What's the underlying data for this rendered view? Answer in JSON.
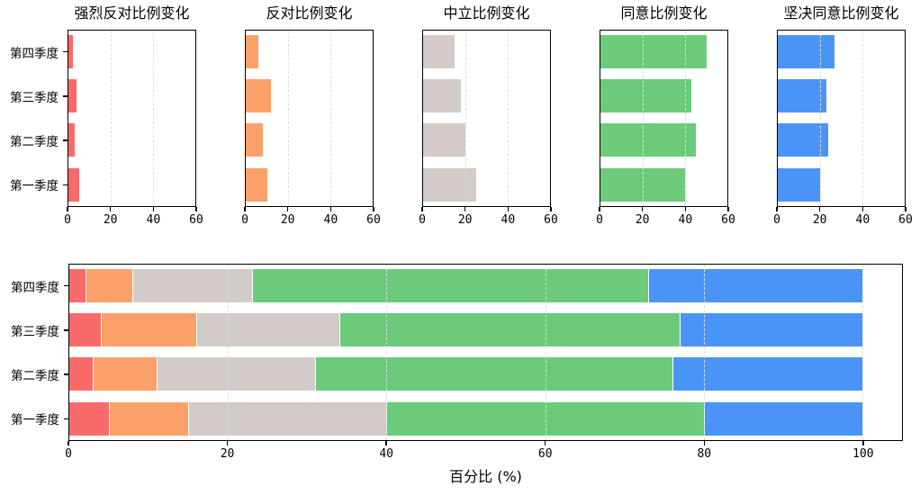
{
  "styles": {
    "background": "#FFFFFF",
    "axis_color": "#000000",
    "grid_color": "#DCDCDC",
    "text_color": "#000000"
  },
  "chart_data": [
    {
      "key": "strongly-disagree",
      "type": "bar",
      "orientation": "horizontal",
      "title": "强烈反对比例变化",
      "categories": [
        "第四季度",
        "第三季度",
        "第二季度",
        "第一季度"
      ],
      "values": [
        2,
        4,
        3,
        5
      ],
      "color": "#FB6A6A",
      "xlim": [
        0,
        60
      ],
      "xticks": [
        0,
        20,
        40,
        60
      ],
      "grid": true,
      "show_y_labels": true
    },
    {
      "key": "disagree",
      "type": "bar",
      "orientation": "horizontal",
      "title": "反对比例变化",
      "categories": [
        "第四季度",
        "第三季度",
        "第二季度",
        "第一季度"
      ],
      "values": [
        6,
        12,
        8,
        10
      ],
      "color": "#FCA069",
      "xlim": [
        0,
        60
      ],
      "xticks": [
        0,
        20,
        40,
        60
      ],
      "grid": true,
      "show_y_labels": false
    },
    {
      "key": "neutral",
      "type": "bar",
      "orientation": "horizontal",
      "title": "中立比例变化",
      "categories": [
        "第四季度",
        "第三季度",
        "第二季度",
        "第一季度"
      ],
      "values": [
        15,
        18,
        20,
        25
      ],
      "color": "#D3CBC7",
      "xlim": [
        0,
        60
      ],
      "xticks": [
        0,
        20,
        40,
        60
      ],
      "grid": true,
      "show_y_labels": false
    },
    {
      "key": "agree",
      "type": "bar",
      "orientation": "horizontal",
      "title": "同意比例变化",
      "categories": [
        "第四季度",
        "第三季度",
        "第二季度",
        "第一季度"
      ],
      "values": [
        50,
        43,
        45,
        40
      ],
      "color": "#6BCB7B",
      "xlim": [
        0,
        60
      ],
      "xticks": [
        0,
        20,
        40,
        60
      ],
      "grid": true,
      "show_y_labels": false
    },
    {
      "key": "strongly-agree",
      "type": "bar",
      "orientation": "horizontal",
      "title": "坚决同意比例变化",
      "categories": [
        "第四季度",
        "第三季度",
        "第二季度",
        "第一季度"
      ],
      "values": [
        27,
        23,
        24,
        20
      ],
      "color": "#4B94F7",
      "xlim": [
        0,
        60
      ],
      "xticks": [
        0,
        20,
        40,
        60
      ],
      "grid": true,
      "show_y_labels": false
    },
    {
      "key": "stacked-percentage",
      "type": "bar",
      "stacked": true,
      "orientation": "horizontal",
      "title": "",
      "categories": [
        "第四季度",
        "第三季度",
        "第二季度",
        "第一季度"
      ],
      "series": [
        {
          "name": "强烈反对",
          "color": "#FB6A6A",
          "values": [
            2,
            4,
            3,
            5
          ]
        },
        {
          "name": "反对",
          "color": "#FCA069",
          "values": [
            6,
            12,
            8,
            10
          ]
        },
        {
          "name": "中立",
          "color": "#D3CBC7",
          "values": [
            15,
            18,
            20,
            25
          ]
        },
        {
          "name": "同意",
          "color": "#6BCB7B",
          "values": [
            50,
            43,
            45,
            40
          ]
        },
        {
          "name": "坚决同意",
          "color": "#4B94F7",
          "values": [
            27,
            23,
            24,
            20
          ]
        }
      ],
      "xlabel": "百分比 (%)",
      "xlim": [
        0,
        105
      ],
      "xticks": [
        0,
        20,
        40,
        60,
        80,
        100
      ],
      "grid": true,
      "show_y_labels": true
    }
  ]
}
